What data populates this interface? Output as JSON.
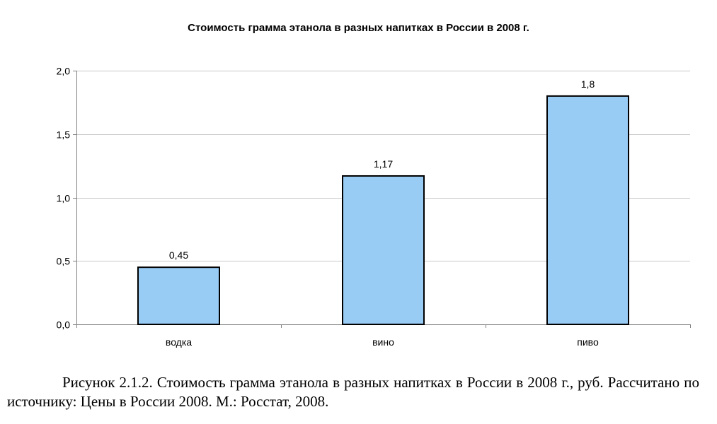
{
  "chart_data": {
    "type": "bar",
    "title": "Стоимость грамма этанола в разных напитках в России в 2008 г.",
    "xlabel": "",
    "ylabel": "",
    "categories": [
      "водка",
      "вино",
      "пиво"
    ],
    "values": [
      0.45,
      1.17,
      1.8
    ],
    "value_labels": [
      "0,45",
      "1,17",
      "1,8"
    ],
    "ylim": [
      0,
      2.0
    ],
    "yticks": [
      0,
      0.5,
      1.0,
      1.5,
      2.0
    ],
    "ytick_labels": [
      "0,0",
      "0,5",
      "1,0",
      "1,5",
      "2,0"
    ],
    "grid": true,
    "legend": "none",
    "bar_color": "#99ccf5",
    "bar_edge_color": "#000000",
    "grid_color": "#c8c8c8"
  },
  "caption": "Рисунок 2.1.2. Стоимость грамма этанола в разных напитках в России в 2008 г., руб. Рассчитано по источнику: Цены в России 2008. М.: Росстат, 2008."
}
